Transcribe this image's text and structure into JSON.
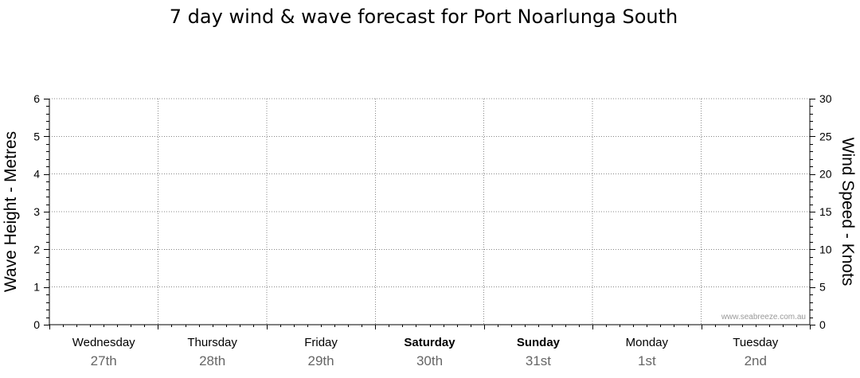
{
  "chart_data": {
    "type": "line",
    "title": "7 day wind & wave forecast for Port Noarlunga South",
    "ylabel_left": "Wave Height - Metres",
    "ylabel_right": "Wind Speed - Knots",
    "ylim_left": [
      0,
      6
    ],
    "ylim_right": [
      0,
      30
    ],
    "yticks_left": [
      0,
      1,
      2,
      3,
      4,
      5,
      6
    ],
    "yticks_right": [
      0,
      5,
      10,
      15,
      20,
      25,
      30
    ],
    "days": [
      {
        "day": "Wednesday",
        "date": "27th",
        "bold": false
      },
      {
        "day": "Thursday",
        "date": "28th",
        "bold": false
      },
      {
        "day": "Friday",
        "date": "29th",
        "bold": false
      },
      {
        "day": "Saturday",
        "date": "30th",
        "bold": true
      },
      {
        "day": "Sunday",
        "date": "31st",
        "bold": true
      },
      {
        "day": "Monday",
        "date": "1st",
        "bold": false
      },
      {
        "day": "Tuesday",
        "date": "2nd",
        "bold": false
      }
    ],
    "series": [],
    "grid": true,
    "watermark": "www.seabreeze.com.au"
  }
}
